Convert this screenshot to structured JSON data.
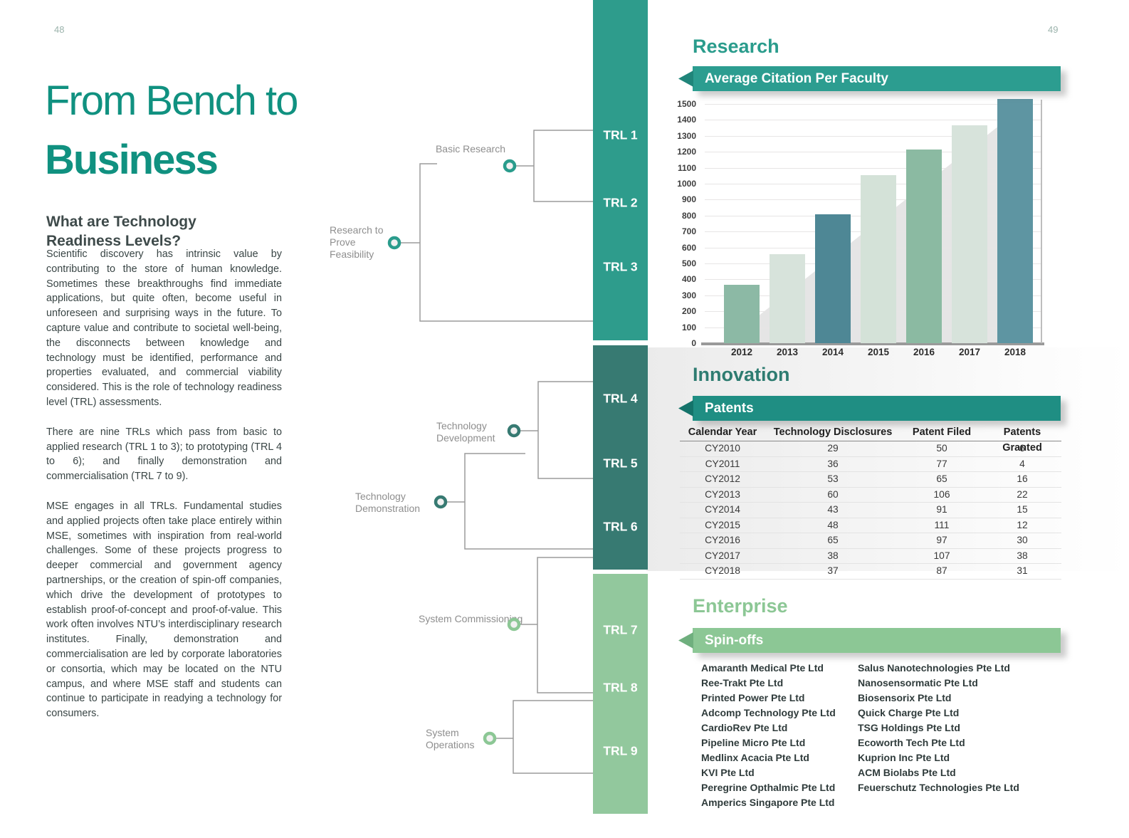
{
  "page": {
    "left_number": "48",
    "right_number": "49"
  },
  "colors": {
    "title_teal": "#109180",
    "segment_teal": "#2E9C8C",
    "segment_dark_teal": "#377A72",
    "segment_light_green": "#92C89D",
    "banner_teal": "#2C9D90",
    "banner_dark_teal": "#1F8E83",
    "banner_green": "#8CC795"
  },
  "left_page": {
    "title_line1": "From Bench to",
    "title_line2": "Business",
    "section_heading": "What are Technology Readiness Levels?",
    "paragraphs": [
      "Scientific discovery has intrinsic value by contributing to the store of human knowledge. Sometimes these breakthroughs find immediate applications, but quite often, become useful in unforeseen and surprising ways in the future.  To capture value and contribute to societal well-being, the disconnects between knowledge and technology must be identified, performance and properties evaluated, and commercial viability considered.  This is the role of technology readiness level (TRL) assessments.",
      "There are nine TRLs which pass from basic to applied research (TRL 1 to 3); to prototyping (TRL 4 to 6); and finally demonstration and commercialisation (TRL 7 to 9).",
      "MSE engages in all TRLs. Fundamental studies and applied projects often take place entirely within MSE, sometimes with inspiration from real-world challenges. Some of these projects progress to deeper commercial and government agency partnerships, or the creation of spin-off companies, which drive the development of prototypes to establish proof-of-concept and proof-of-value. This work often involves NTU’s interdisciplinary research institutes. Finally, demonstration and commercialisation are led by corporate laboratories or consortia, which may be located on the NTU campus, and where MSE staff and students can continue to participate in readying a technology for consumers."
    ]
  },
  "diagram": {
    "trl_labels": [
      "TRL 1",
      "TRL 2",
      "TRL 3",
      "TRL 4",
      "TRL 5",
      "TRL 6",
      "TRL 7",
      "TRL 8",
      "TRL 9"
    ],
    "group_labels": {
      "basic_research": "Basic Research",
      "research_to_prove_feasibility": "Research to Prove Feasibility",
      "technology_development": "Technology Development",
      "technology_demonstration": "Technology Demonstration",
      "system_commissioning": "System Commissioning",
      "system_operations": "System Operations"
    }
  },
  "research": {
    "heading": "Research",
    "banner": "Average Citation Per Faculty"
  },
  "chart_data": {
    "type": "bar",
    "title": "Average Citation Per Faculty",
    "categories": [
      "2012",
      "2013",
      "2014",
      "2015",
      "2016",
      "2017",
      "2018"
    ],
    "values": [
      365,
      560,
      810,
      1055,
      1215,
      1365,
      1530
    ],
    "bar_colors": [
      "#8CB9A5",
      "#D7E3DB",
      "#4E8795",
      "#D4E2D8",
      "#8BBAA2",
      "#D7E3DB",
      "#5E95A2"
    ],
    "ylim": [
      0,
      1500
    ],
    "ytick_step": 100,
    "grid": true,
    "xlabel": "",
    "ylabel": "",
    "legend": false,
    "background_shadow": "gray-triangle-rising-left-to-right"
  },
  "innovation": {
    "heading": "Innovation",
    "banner": "Patents",
    "table": {
      "headers": [
        "Calendar Year",
        "Technology Disclosures",
        "Patent Filed",
        "Patents Granted"
      ],
      "rows": [
        [
          "CY2010",
          "29",
          "50",
          "6"
        ],
        [
          "CY2011",
          "36",
          "77",
          "4"
        ],
        [
          "CY2012",
          "53",
          "65",
          "16"
        ],
        [
          "CY2013",
          "60",
          "106",
          "22"
        ],
        [
          "CY2014",
          "43",
          "91",
          "15"
        ],
        [
          "CY2015",
          "48",
          "111",
          "12"
        ],
        [
          "CY2016",
          "65",
          "97",
          "30"
        ],
        [
          "CY2017",
          "38",
          "107",
          "38"
        ],
        [
          "CY2018",
          "37",
          "87",
          "31"
        ]
      ]
    }
  },
  "enterprise": {
    "heading": "Enterprise",
    "banner": "Spin-offs",
    "spinoffs_col1": [
      "Amaranth Medical Pte Ltd",
      "Ree-Trakt Pte Ltd",
      "Printed Power Pte Ltd",
      "Adcomp Technology Pte Ltd",
      "CardioRev Pte Ltd",
      "Pipeline Micro Pte Ltd",
      "Medlinx Acacia Pte Ltd",
      "KVI Pte Ltd",
      "Peregrine Opthalmic Pte Ltd",
      "Amperics Singapore Pte Ltd"
    ],
    "spinoffs_col2": [
      "Salus Nanotechnologies Pte Ltd",
      "Nanosensormatic Pte Ltd",
      "Biosensorix Pte Ltd",
      "Quick Charge Pte Ltd",
      "TSG Holdings Pte Ltd",
      "Ecoworth Tech Pte Ltd",
      "Kuprion Inc Pte Ltd",
      "ACM Biolabs Pte Ltd",
      "Feuerschutz Technologies Pte Ltd"
    ]
  }
}
